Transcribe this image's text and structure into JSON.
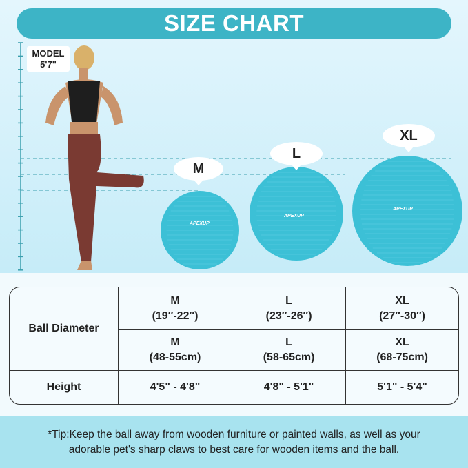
{
  "title": "SIZE CHART",
  "model": {
    "label": "MODEL",
    "height": "5'7\""
  },
  "balls": [
    {
      "size": "M",
      "brand": "APEXUP"
    },
    {
      "size": "L",
      "brand": "APEXUP"
    },
    {
      "size": "XL",
      "brand": "APEXUP"
    }
  ],
  "colors": {
    "banner": "#3db4c6",
    "ball": "#3cc0d6",
    "tip_band": "#a8e3ef"
  },
  "table": {
    "row_headers": [
      "Ball Diameter",
      "Height"
    ],
    "inches": [
      {
        "size": "M",
        "range": "(19″-22″)"
      },
      {
        "size": "L",
        "range": "(23″-26″)"
      },
      {
        "size": "XL",
        "range": "(27″-30″)"
      }
    ],
    "cm": [
      {
        "size": "M",
        "range": "(48-55cm)"
      },
      {
        "size": "L",
        "range": "(58-65cm)"
      },
      {
        "size": "XL",
        "range": "(68-75cm)"
      }
    ],
    "heights": [
      "4'5\" - 4'8\"",
      "4'8\" - 5'1\"",
      "5'1\" - 5'4\""
    ]
  },
  "tip": {
    "line1": "*Tip:Keep the ball away from wooden furniture or painted walls, as well as your",
    "line2": "adorable pet's sharp claws to best care for wooden items and the ball."
  }
}
